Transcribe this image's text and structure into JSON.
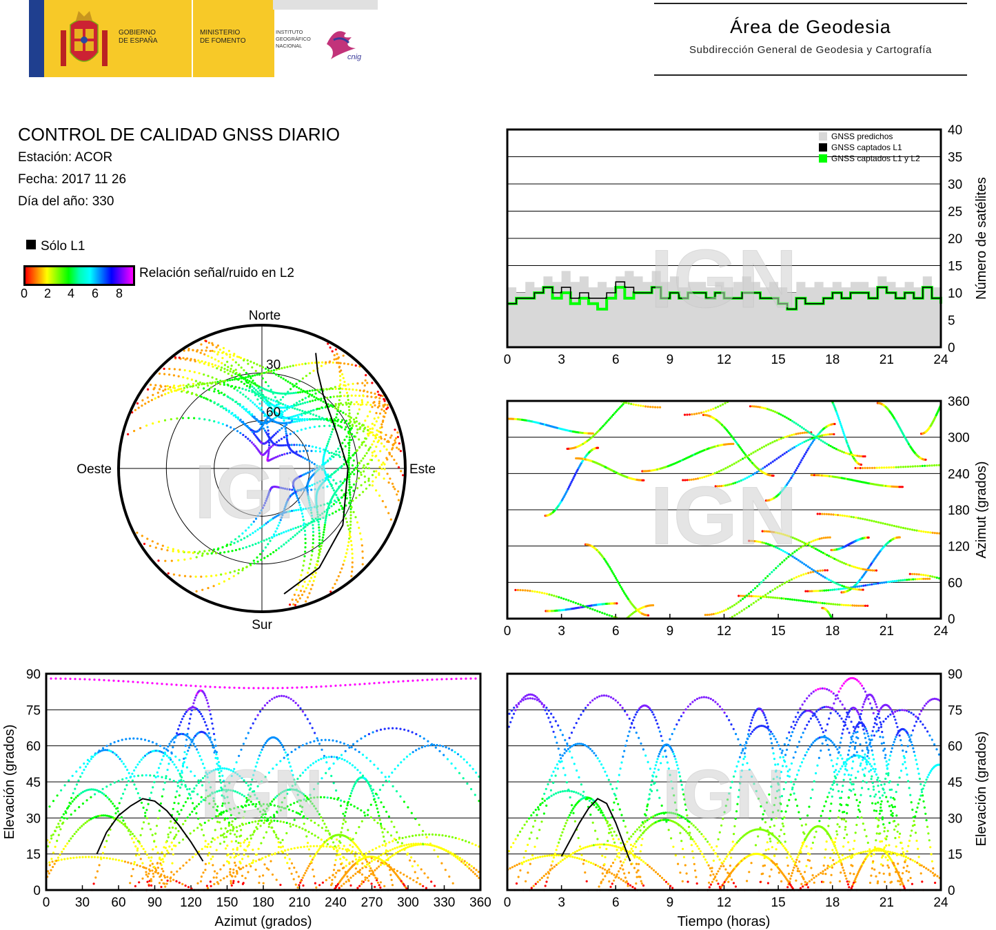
{
  "header": {
    "gov_line1": "GOBIERNO",
    "gov_line2": "DE ESPAÑA",
    "min_line1": "MINISTERIO",
    "min_line2": "DE FOMENTO",
    "ign_line1": "INSTITUTO",
    "ign_line2": "GEOGRÁFICO",
    "ign_line3": "NACIONAL",
    "cnig_logo": "cnig",
    "area_title": "Área de Geodesia",
    "area_subtitle": "Subdirección General de Geodesia y Cartografía"
  },
  "report": {
    "title": "CONTROL DE CALIDAD GNSS DIARIO",
    "station": "Estación: ACOR",
    "date": "Fecha: 2017 11 26",
    "doy": "Día del año: 330"
  },
  "legend": {
    "l1_only": "Sólo L1",
    "snr_label": "Relación señal/ruido en L2",
    "snr_ticks": [
      "0",
      "2",
      "4",
      "6",
      "8"
    ]
  },
  "watermark": "IGN",
  "colors": {
    "l1_only": "#000000",
    "predicted": "#d8d8d8",
    "l1_l2": "#00ff00",
    "snr_scale": [
      "#ff0000",
      "#ffff00",
      "#00ff00",
      "#00ffff",
      "#0000ff",
      "#ff00ff"
    ]
  },
  "chart_data": [
    {
      "type": "area",
      "id": "satellite-count",
      "ylabel": "Número de satélites",
      "xlim": [
        0,
        24
      ],
      "ylim": [
        0,
        40
      ],
      "xticks": [
        "0",
        "3",
        "6",
        "9",
        "12",
        "15",
        "18",
        "21",
        "24"
      ],
      "yticks": [
        "0",
        "5",
        "10",
        "15",
        "20",
        "25",
        "30",
        "35",
        "40"
      ],
      "grid": true,
      "legend_position": "top-right",
      "series": [
        {
          "name": "GNSS predichos",
          "x": [
            0,
            0.5,
            1,
            1.5,
            2,
            2.5,
            3,
            3.5,
            4,
            4.5,
            5,
            5.5,
            6,
            6.5,
            7,
            7.5,
            8,
            8.5,
            9,
            9.5,
            10,
            10.5,
            11,
            11.5,
            12,
            12.5,
            13,
            13.5,
            14,
            14.5,
            15,
            15.5,
            16,
            16.5,
            17,
            17.5,
            18,
            18.5,
            19,
            19.5,
            20,
            20.5,
            21,
            21.5,
            22,
            22.5,
            23,
            23.5,
            24
          ],
          "y": [
            11,
            10,
            12,
            11,
            13,
            12,
            14,
            12,
            13,
            11,
            12,
            11,
            13,
            14,
            13,
            12,
            14,
            12,
            13,
            11,
            12,
            12,
            11,
            12,
            11,
            12,
            13,
            12,
            11,
            12,
            11,
            10,
            12,
            11,
            12,
            11,
            12,
            11,
            12,
            12,
            11,
            13,
            12,
            11,
            12,
            11,
            13,
            11,
            10
          ]
        },
        {
          "name": "GNSS captados L1",
          "x": [
            0,
            0.5,
            1,
            1.5,
            2,
            2.5,
            3,
            3.5,
            4,
            4.5,
            5,
            5.5,
            6,
            6.5,
            7,
            7.5,
            8,
            8.5,
            9,
            9.5,
            10,
            10.5,
            11,
            11.5,
            12,
            12.5,
            13,
            13.5,
            14,
            14.5,
            15,
            15.5,
            16,
            16.5,
            17,
            17.5,
            18,
            18.5,
            19,
            19.5,
            20,
            20.5,
            21,
            21.5,
            22,
            22.5,
            23,
            23.5,
            24
          ],
          "y": [
            8,
            9,
            9,
            10,
            11,
            10,
            11,
            9,
            10,
            9,
            9,
            10,
            12,
            11,
            10,
            10,
            11,
            9,
            10,
            9,
            10,
            10,
            9,
            10,
            9,
            9,
            10,
            10,
            9,
            9,
            8,
            7,
            9,
            8,
            8,
            9,
            10,
            9,
            10,
            10,
            9,
            11,
            10,
            9,
            10,
            9,
            11,
            9,
            8
          ]
        },
        {
          "name": "GNSS captados L1 y L2",
          "x": [
            0,
            0.5,
            1,
            1.5,
            2,
            2.5,
            3,
            3.5,
            4,
            4.5,
            5,
            5.5,
            6,
            6.5,
            7,
            7.5,
            8,
            8.5,
            9,
            9.5,
            10,
            10.5,
            11,
            11.5,
            12,
            12.5,
            13,
            13.5,
            14,
            14.5,
            15,
            15.5,
            16,
            16.5,
            17,
            17.5,
            18,
            18.5,
            19,
            19.5,
            20,
            20.5,
            21,
            21.5,
            22,
            22.5,
            23,
            23.5,
            24
          ],
          "y": [
            8,
            9,
            9,
            10,
            11,
            9,
            10,
            8,
            9,
            8,
            7,
            9,
            11,
            9,
            10,
            10,
            11,
            9,
            10,
            9,
            10,
            10,
            9,
            10,
            9,
            9,
            10,
            10,
            9,
            9,
            8,
            7,
            9,
            8,
            8,
            9,
            10,
            9,
            10,
            10,
            9,
            11,
            10,
            9,
            10,
            9,
            11,
            9,
            8
          ]
        }
      ]
    },
    {
      "type": "scatter",
      "id": "azimuth-time",
      "ylabel": "Azimut (grados)",
      "xlim": [
        0,
        24
      ],
      "ylim": [
        0,
        360
      ],
      "xticks": [
        "0",
        "3",
        "6",
        "9",
        "12",
        "15",
        "18",
        "21",
        "24"
      ],
      "yticks": [
        "0",
        "60",
        "120",
        "180",
        "240",
        "300",
        "360"
      ],
      "grid": true
    },
    {
      "type": "scatter",
      "id": "skyplot",
      "labels": {
        "north": "Norte",
        "south": "Sur",
        "east": "Este",
        "west": "Oeste"
      },
      "rings": [
        "30",
        "60"
      ],
      "series": [
        {
          "name": "Sólo L1",
          "az": [
            25,
            30,
            40,
            65,
            90,
            125,
            150,
            170
          ],
          "el": [
            10,
            20,
            30,
            38,
            36,
            28,
            18,
            10
          ]
        }
      ]
    },
    {
      "type": "scatter",
      "id": "elevation-azimuth",
      "xlabel": "Azimut (grados)",
      "ylabel": "Elevación (grados)",
      "xlim": [
        0,
        360
      ],
      "ylim": [
        0,
        90
      ],
      "xticks": [
        "0",
        "30",
        "60",
        "90",
        "120",
        "150",
        "180",
        "210",
        "240",
        "270",
        "300",
        "330",
        "360"
      ],
      "yticks": [
        "0",
        "15",
        "30",
        "45",
        "60",
        "75",
        "90"
      ],
      "grid": true,
      "series": [
        {
          "name": "Sólo L1",
          "x": [
            42,
            50,
            60,
            70,
            80,
            90,
            100,
            110,
            120,
            130
          ],
          "y": [
            15,
            24,
            31,
            35,
            38,
            37,
            33,
            27,
            20,
            12
          ]
        }
      ]
    },
    {
      "type": "scatter",
      "id": "elevation-time",
      "xlabel": "Tiempo (horas)",
      "ylabel": "Elevación (grados)",
      "xlim": [
        0,
        24
      ],
      "ylim": [
        0,
        90
      ],
      "xticks": [
        "0",
        "3",
        "6",
        "9",
        "12",
        "15",
        "18",
        "21",
        "24"
      ],
      "yticks": [
        "0",
        "15",
        "30",
        "45",
        "60",
        "75",
        "90"
      ],
      "grid": true,
      "series": [
        {
          "name": "Sólo L1",
          "x": [
            3,
            3.5,
            4,
            4.5,
            5,
            5.5,
            6,
            6.5,
            6.8
          ],
          "y": [
            14,
            21,
            28,
            34,
            38,
            36,
            28,
            18,
            12
          ]
        }
      ]
    }
  ]
}
